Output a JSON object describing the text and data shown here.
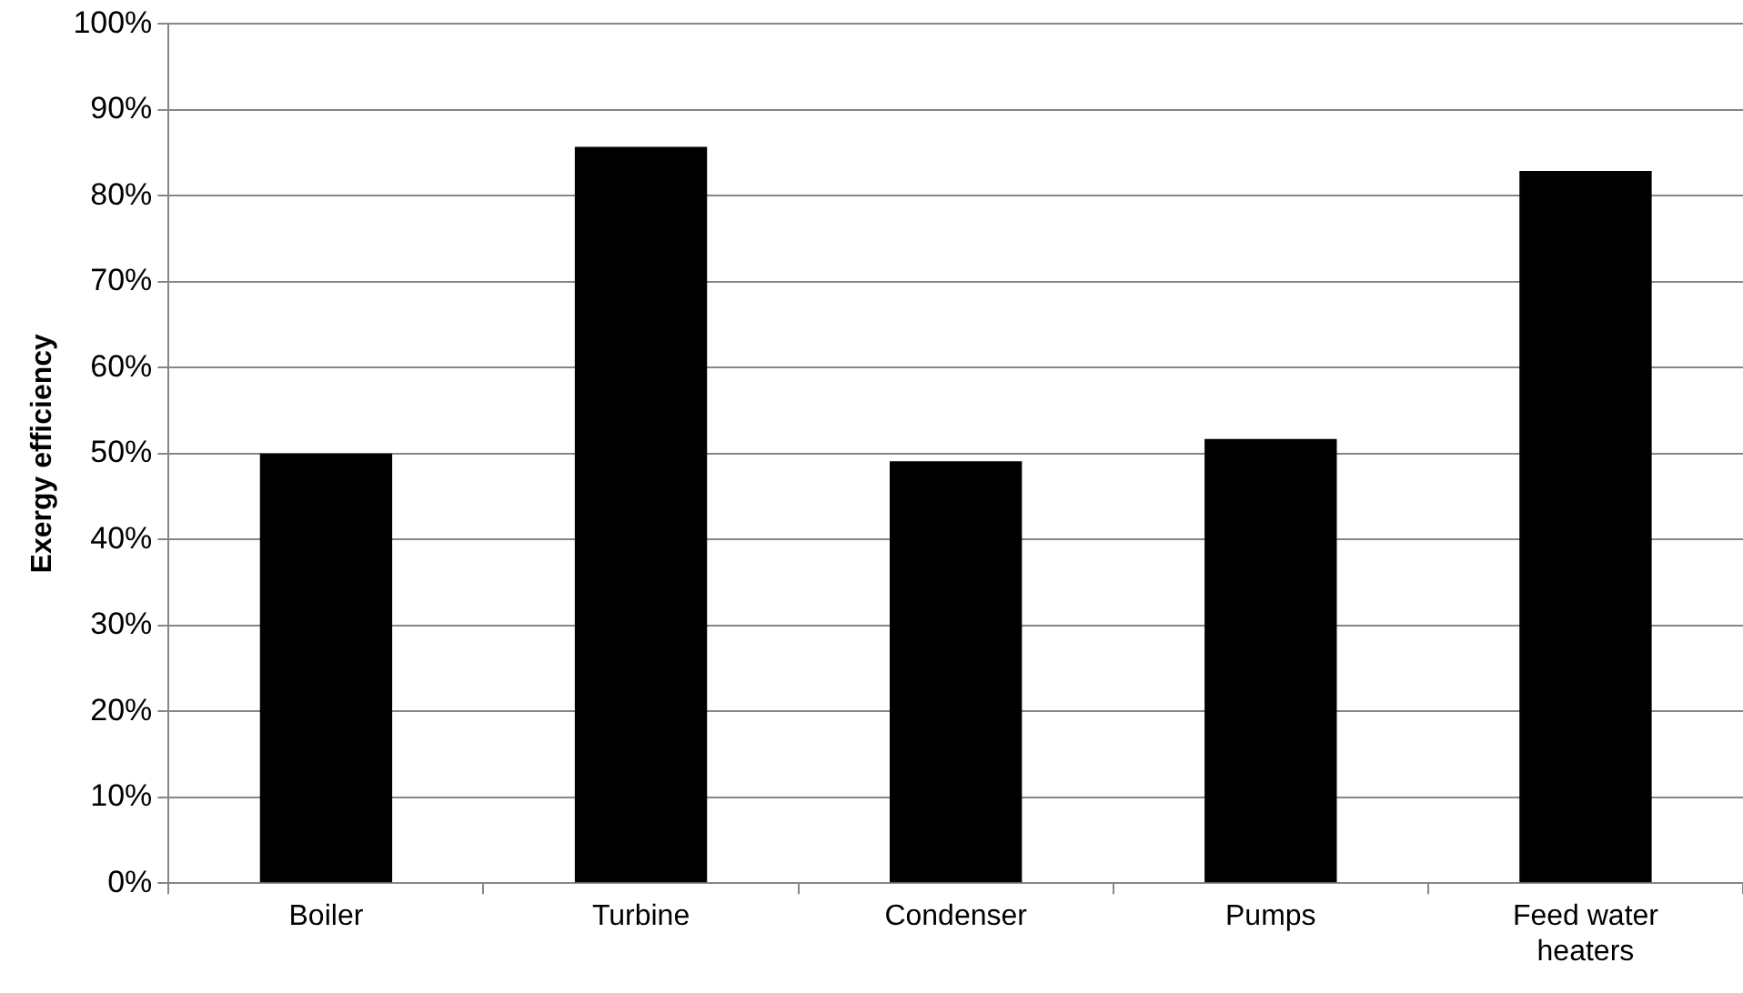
{
  "chart_data": {
    "type": "bar",
    "ylabel": "Exergy efficiency",
    "categories": [
      "Boiler",
      "Turbine",
      "Condenser",
      "Pumps",
      "Feed water heaters"
    ],
    "values": [
      50,
      85.7,
      49.1,
      51.7,
      82.9
    ],
    "color": "#000000",
    "ylim": [
      0,
      100
    ],
    "yticks": [
      {
        "value": 0,
        "label": "0%"
      },
      {
        "value": 10,
        "label": "10%"
      },
      {
        "value": 20,
        "label": "20%"
      },
      {
        "value": 30,
        "label": "30%"
      },
      {
        "value": 40,
        "label": "40%"
      },
      {
        "value": 50,
        "label": "50%"
      },
      {
        "value": 60,
        "label": "60%"
      },
      {
        "value": 70,
        "label": "70%"
      },
      {
        "value": 80,
        "label": "80%"
      },
      {
        "value": 90,
        "label": "90%"
      },
      {
        "value": 100,
        "label": "100%"
      }
    ],
    "grid": "y",
    "legend": false
  }
}
